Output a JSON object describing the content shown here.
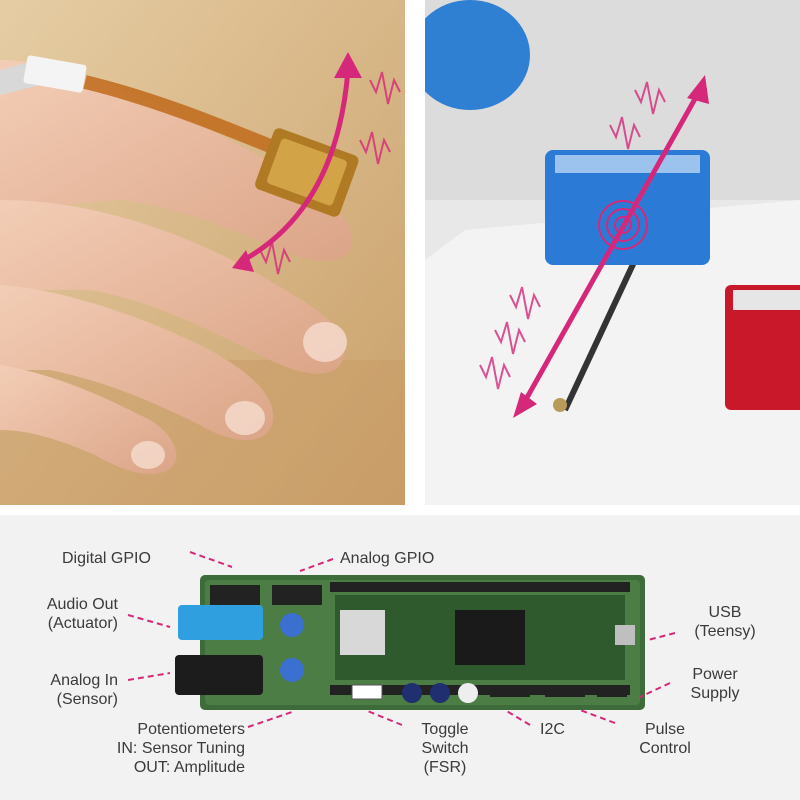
{
  "labels": {
    "digital_gpio": "Digital GPIO",
    "analog_gpio": "Analog GPIO",
    "audio_out_1": "Audio Out",
    "audio_out_2": "(Actuator)",
    "analog_in_1": "Analog In",
    "analog_in_2": "(Sensor)",
    "potentiometers_1": "Potentiometers",
    "potentiometers_2": "IN: Sensor Tuning",
    "potentiometers_3": "OUT: Amplitude",
    "toggle_1": "Toggle",
    "toggle_2": "Switch",
    "toggle_3": "(FSR)",
    "i2c": "I2C",
    "pulse_1": "Pulse",
    "pulse_2": "Control",
    "usb_1": "USB",
    "usb_2": "(Teensy)",
    "power_1": "Power",
    "power_2": "Supply"
  },
  "colors": {
    "accent": "#d6287a",
    "label_text": "#3a3a3a",
    "pcb_green": "#3d6b3a",
    "table_wood": "#d8b98a"
  },
  "icons": [
    "vibration-wave-icon",
    "arrow-icon",
    "radial-pulse-icon"
  ]
}
